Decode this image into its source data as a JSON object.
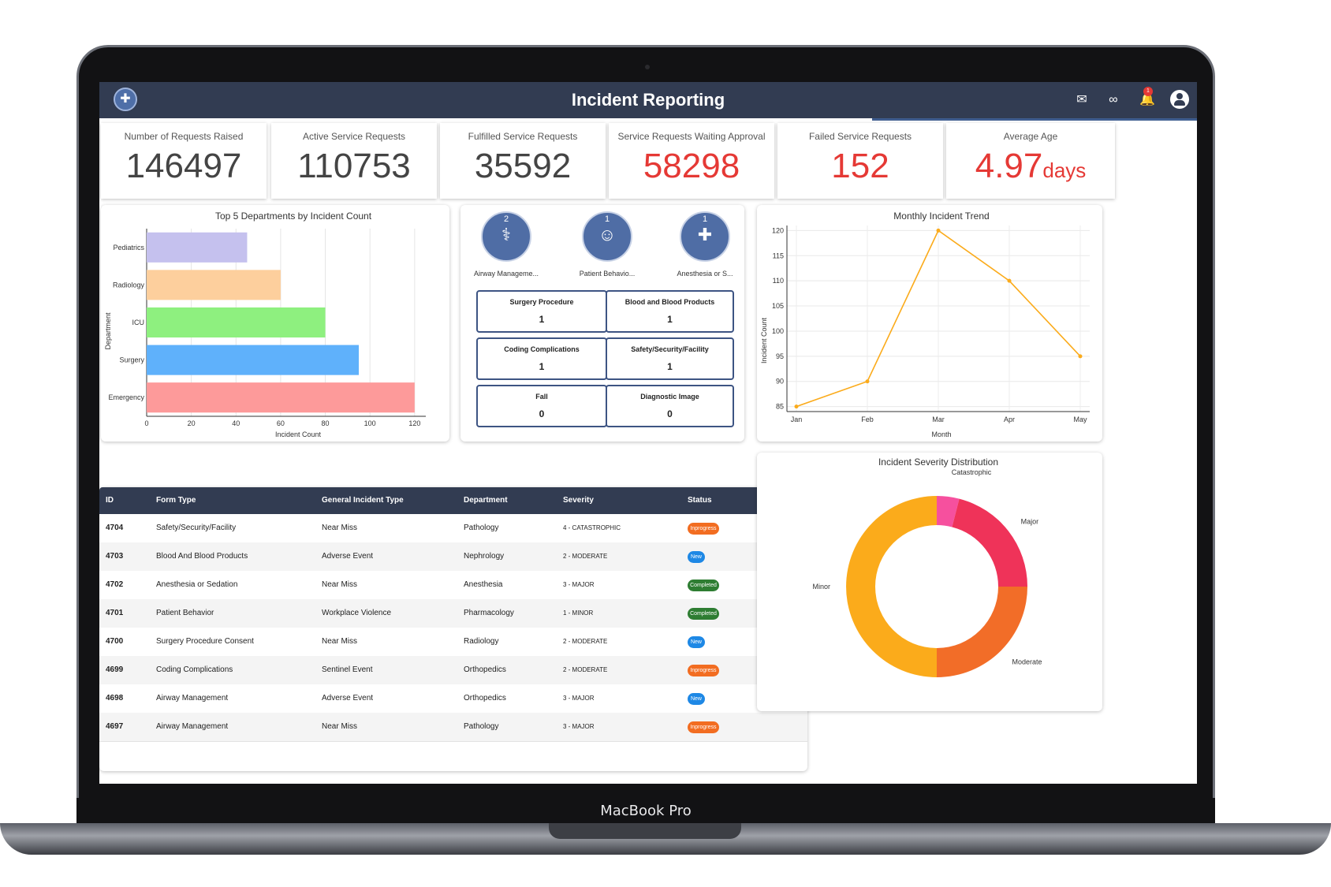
{
  "device_label": "MacBook Pro",
  "header": {
    "title": "Incident Reporting",
    "notification_count": "1",
    "icons": [
      "logo-icon",
      "mail-icon",
      "link-icon",
      "bell-icon",
      "user-icon"
    ]
  },
  "kpis": [
    {
      "label": "Number of Requests Raised",
      "value": "146497",
      "unit": "",
      "color": "#444444"
    },
    {
      "label": "Active Service Requests",
      "value": "110753",
      "unit": "",
      "color": "#444444"
    },
    {
      "label": "Fulfilled Service Requests",
      "value": "35592",
      "unit": "",
      "color": "#444444"
    },
    {
      "label": "Service Requests Waiting Approval",
      "value": "58298",
      "unit": "",
      "color": "#e53935"
    },
    {
      "label": "Failed Service Requests",
      "value": "152",
      "unit": "",
      "color": "#e53935"
    },
    {
      "label": "Average Age",
      "value": "4.97",
      "unit": "days",
      "color": "#e53935"
    }
  ],
  "chart_data": [
    {
      "type": "bar",
      "orientation": "horizontal",
      "title": "Top 5 Departments by Incident Count",
      "xlabel": "Incident Count",
      "ylabel": "Department",
      "categories": [
        "Pediatrics",
        "Radiology",
        "ICU",
        "Surgery",
        "Emergency"
      ],
      "values": [
        45,
        60,
        80,
        95,
        120
      ],
      "colors": [
        "#c5c1ee",
        "#fdcf9d",
        "#8ef07f",
        "#5fb1fb",
        "#fd9a9a"
      ],
      "xlim": [
        0,
        125
      ],
      "xticks": [
        0,
        20,
        40,
        60,
        80,
        100,
        120
      ],
      "grid": true
    },
    {
      "type": "line",
      "title": "Monthly Incident Trend",
      "xlabel": "Month",
      "ylabel": "Incident Count",
      "x": [
        "Jan",
        "Feb",
        "Mar",
        "Apr",
        "May"
      ],
      "values": [
        85,
        90,
        120,
        110,
        95
      ],
      "color": "#fbab1b",
      "ylim": [
        84,
        121
      ],
      "yticks": [
        85,
        90,
        95,
        100,
        105,
        110,
        115,
        120
      ],
      "grid": true
    },
    {
      "type": "pie",
      "style": "donut",
      "title": "Incident Severity Distribution",
      "categories": [
        "Catastrophic",
        "Major",
        "Moderate",
        "Minor"
      ],
      "values": [
        4,
        21,
        25,
        50
      ],
      "colors": [
        "#f6509e",
        "#ef3359",
        "#f26d28",
        "#fbab1b"
      ]
    }
  ],
  "categories_panel": {
    "circles": [
      {
        "count": "2",
        "label": "Airway Manageme...",
        "icon": "airway-icon"
      },
      {
        "count": "1",
        "label": "Patient Behavio...",
        "icon": "patient-behavior-icon"
      },
      {
        "count": "1",
        "label": "Anesthesia or S...",
        "icon": "anesthesia-icon"
      }
    ],
    "cells": [
      {
        "label": "Surgery Procedure",
        "value": "1"
      },
      {
        "label": "Blood and Blood Products",
        "value": "1"
      },
      {
        "label": "Coding Complications",
        "value": "1"
      },
      {
        "label": "Safety/Security/Facility",
        "value": "1"
      },
      {
        "label": "Fall",
        "value": "0"
      },
      {
        "label": "Diagnostic Image",
        "value": "0"
      }
    ]
  },
  "table": {
    "headers": [
      "ID",
      "Form Type",
      "General Incident Type",
      "Department",
      "Severity",
      "Status"
    ],
    "rows": [
      {
        "id": "4704",
        "form": "Safety/Security/Facility",
        "type": "Near Miss",
        "dept": "Pathology",
        "sev": "4 - CATASTROPHIC",
        "status": "Inprogress"
      },
      {
        "id": "4703",
        "form": "Blood And Blood Products",
        "type": "Adverse Event",
        "dept": "Nephrology",
        "sev": "2 - MODERATE",
        "status": "New"
      },
      {
        "id": "4702",
        "form": "Anesthesia or Sedation",
        "type": "Near Miss",
        "dept": "Anesthesia",
        "sev": "3 - MAJOR",
        "status": "Completed"
      },
      {
        "id": "4701",
        "form": "Patient Behavior",
        "type": "Workplace Violence",
        "dept": "Pharmacology",
        "sev": "1 - MINOR",
        "status": "Completed"
      },
      {
        "id": "4700",
        "form": "Surgery Procedure Consent",
        "type": "Near Miss",
        "dept": "Radiology",
        "sev": "2 - MODERATE",
        "status": "New"
      },
      {
        "id": "4699",
        "form": "Coding Complications",
        "type": "Sentinel Event",
        "dept": "Orthopedics",
        "sev": "2 - MODERATE",
        "status": "Inprogress"
      },
      {
        "id": "4698",
        "form": "Airway Management",
        "type": "Adverse Event",
        "dept": "Orthopedics",
        "sev": "3 - MAJOR",
        "status": "New"
      },
      {
        "id": "4697",
        "form": "Airway Management",
        "type": "Near Miss",
        "dept": "Pathology",
        "sev": "3 - MAJOR",
        "status": "Inprogress"
      }
    ],
    "status_colors": {
      "Inprogress": "#f26d21",
      "New": "#1e88e5",
      "Completed": "#2e7d32"
    }
  }
}
